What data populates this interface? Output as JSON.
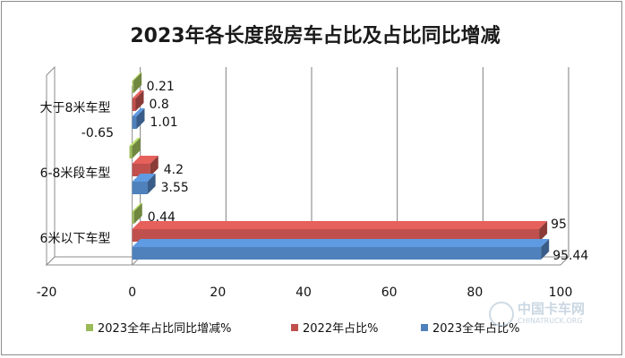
{
  "chart_data": {
    "type": "bar",
    "orientation": "horizontal",
    "title": "2023年各长度段房车占比及占比同比增减",
    "categories": [
      "大于8米车型",
      "6-8米段车型",
      "6米以下车型"
    ],
    "series": [
      {
        "name": "2023全年占比同比增减%",
        "color": "#9bbb59",
        "values": [
          0.21,
          -0.65,
          0.44
        ]
      },
      {
        "name": "2022年占比%",
        "color": "#c0504d",
        "values": [
          0.8,
          4.2,
          95
        ]
      },
      {
        "name": "2023全年占比%",
        "color": "#4f81bd",
        "values": [
          1.01,
          3.55,
          95.44
        ]
      }
    ],
    "xlim": [
      -20,
      100
    ],
    "xticks": [
      -20,
      0,
      20,
      40,
      60,
      80,
      100
    ],
    "legend": "bottom",
    "grid": true
  },
  "watermark": {
    "brand": "中国卡车网",
    "domain": "CHINATRUCK.ORG"
  }
}
